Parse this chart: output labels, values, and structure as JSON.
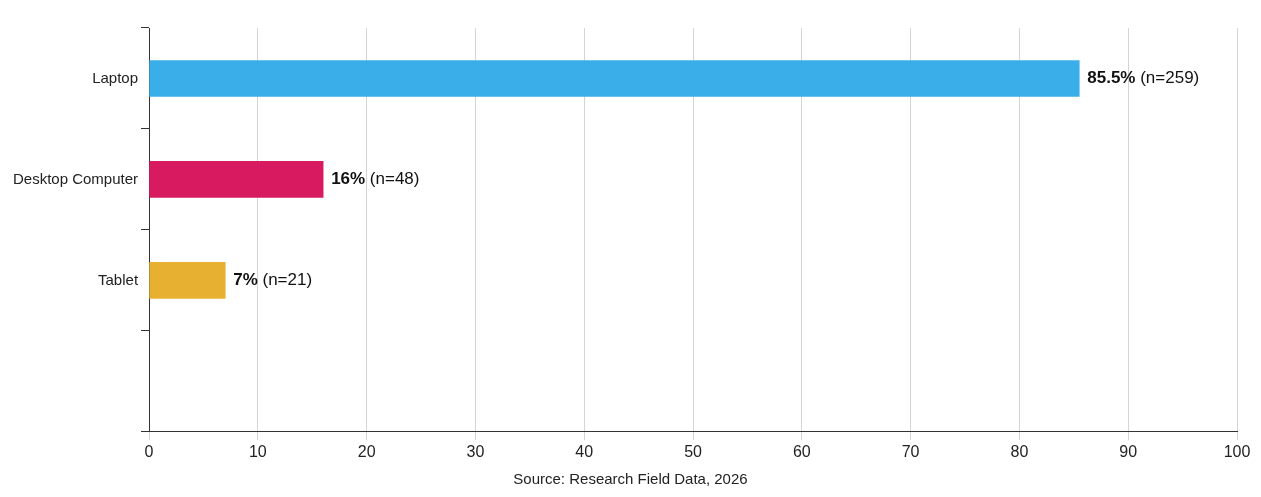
{
  "chart_data": {
    "type": "bar",
    "orientation": "horizontal",
    "categories": [
      "Laptop",
      "Desktop Computer",
      "Tablet",
      null
    ],
    "values": [
      85.5,
      16,
      7,
      null
    ],
    "colors": [
      "#3aaee8",
      "#d81b60",
      "#e8b030",
      "#999999"
    ],
    "value_labels": [
      "85.5% (n=259)",
      "16% (n=48)",
      "7% (n=21)",
      null
    ],
    "xlim": [
      0,
      100
    ],
    "xticks": [
      0,
      10,
      20,
      30,
      40,
      50,
      60,
      70,
      80,
      90,
      100
    ],
    "grid": "x",
    "annotations": [
      "Source: Research Field Data, 2026"
    ]
  }
}
